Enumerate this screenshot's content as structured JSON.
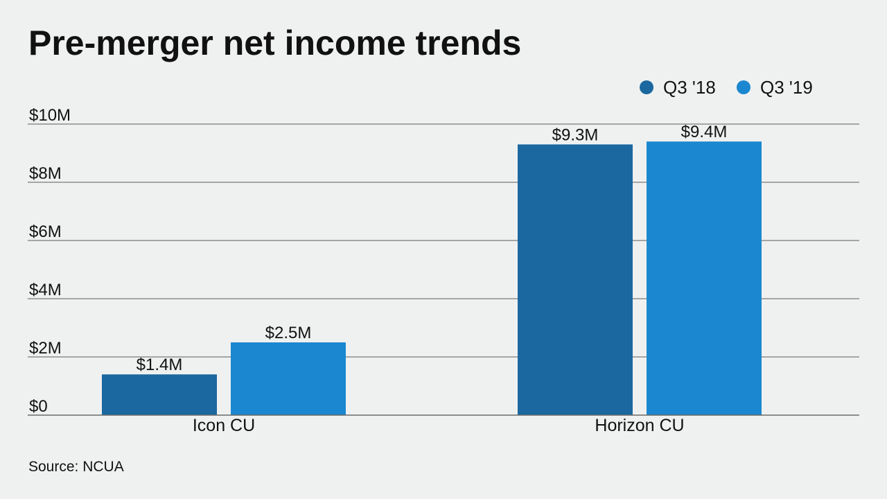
{
  "chart_data": {
    "type": "bar",
    "title": "Pre-merger net income trends",
    "categories": [
      "Icon CU",
      "Horizon CU"
    ],
    "series": [
      {
        "name": "Q3 '18",
        "color": "#1b68a0",
        "values": [
          1.4,
          9.3
        ],
        "labels": [
          "$1.4M",
          "$9.3M"
        ]
      },
      {
        "name": "Q3 '19",
        "color": "#1b87d0",
        "values": [
          2.5,
          9.4
        ],
        "labels": [
          "$2.5M",
          "$9.4M"
        ]
      }
    ],
    "ylim": [
      0,
      10
    ],
    "yticks": [
      0,
      2,
      4,
      6,
      8,
      10
    ],
    "ytick_labels": [
      "$0",
      "$2M",
      "$4M",
      "$6M",
      "$8M",
      "$10M"
    ],
    "xlabel": "",
    "ylabel": "",
    "grid": true,
    "legend_position": "top-right",
    "source": "Source: NCUA"
  }
}
